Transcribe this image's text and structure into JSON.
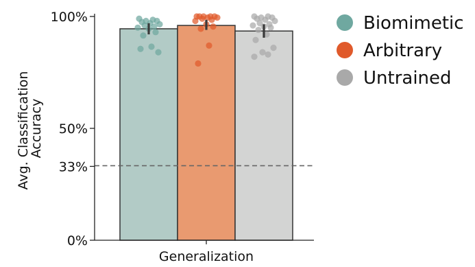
{
  "chart_data": {
    "type": "bar",
    "categories": [
      "Generalization"
    ],
    "xlabel": "Generalization",
    "ylabel": [
      "Avg. Classification",
      "Accuracy"
    ],
    "ylim": [
      0,
      100
    ],
    "yticks": [
      {
        "value": 0,
        "label": "0%"
      },
      {
        "value": 33,
        "label": "33%"
      },
      {
        "value": 50,
        "label": "50%"
      },
      {
        "value": 100,
        "label": "100%"
      }
    ],
    "reference_line": {
      "value": 33.3,
      "style": "dashed",
      "color": "#666666"
    },
    "legend_position": "right",
    "series": [
      {
        "name": "Biomimetic",
        "value": 94.5,
        "ci": [
          92,
          97
        ],
        "color": "#6fa8a0",
        "bar_color": "#b2cbc6",
        "points": [
          99,
          98.5,
          98,
          98,
          97.5,
          97,
          96.5,
          96,
          95.5,
          95,
          94.5,
          93,
          91.5,
          86.5,
          85.5,
          84
        ]
      },
      {
        "name": "Arbitrary",
        "value": 96,
        "ci": [
          94,
          98.5
        ],
        "color": "#e05a2b",
        "bar_color": "#e99a70",
        "points": [
          100,
          100,
          100,
          100,
          100,
          99.5,
          99.5,
          99,
          98.5,
          98,
          96.5,
          95.5,
          94.5,
          87,
          79
        ]
      },
      {
        "name": "Untrained",
        "value": 93.5,
        "ci": [
          90.5,
          96.5
        ],
        "color": "#a9a9a9",
        "bar_color": "#d3d4d3",
        "points": [
          100,
          100,
          99.5,
          99.5,
          99,
          98.5,
          98,
          97,
          96.5,
          96,
          95.5,
          95,
          94,
          92,
          89.5,
          86,
          84,
          83,
          82
        ]
      }
    ]
  }
}
